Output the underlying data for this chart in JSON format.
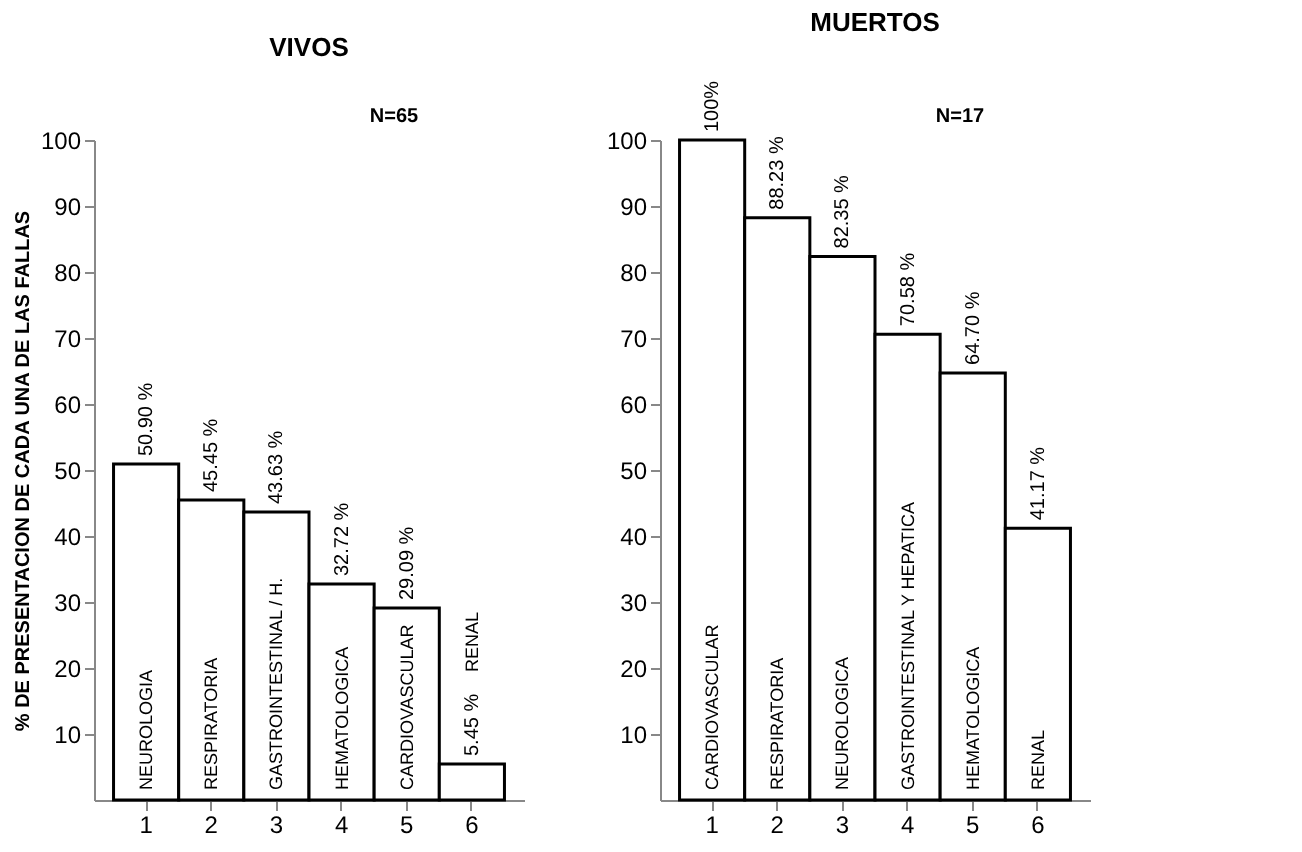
{
  "chart_data": [
    {
      "type": "bar",
      "title": "VIVOS",
      "ylabel": "% DE PRESENTACION DE CADA UNA DE LAS FALLAS",
      "categories": [
        "1",
        "2",
        "3",
        "4",
        "5",
        "6"
      ],
      "values": [
        50.9,
        45.45,
        43.63,
        32.72,
        29.09,
        5.45
      ],
      "color": "#ffffff",
      "value_labels": [
        "50.90 %",
        "45.45 %",
        "43.63 %",
        "32.72 %",
        "29.09 %",
        "5.45 %"
      ],
      "annotations": [
        "N=65",
        "NEUROLOGIA",
        "RESPIRATORIA",
        "GASTROINTESTINAL / H.",
        "HEMATOLOGICA",
        "CARDIOVASCULAR",
        "RENAL"
      ],
      "ylim": [
        0,
        100
      ],
      "yticks": [
        10,
        20,
        30,
        40,
        50,
        60,
        70,
        80,
        90,
        100
      ],
      "grid": false
    },
    {
      "type": "bar",
      "title": "MUERTOS",
      "categories": [
        "1",
        "2",
        "3",
        "4",
        "5",
        "6"
      ],
      "values": [
        100,
        88.23,
        82.35,
        70.58,
        64.7,
        41.17
      ],
      "color": "#ffffff",
      "value_labels": [
        "100%",
        "88.23 %",
        "82.35 %",
        "70.58 %",
        "64.70 %",
        "41.17 %"
      ],
      "annotations": [
        "N=17",
        "CARDIOVASCULAR",
        "RESPIRATORIA",
        "NEUROLOGICA",
        "GASTROINTESTINAL  Y  HEPATICA",
        "HEMATOLOGICA",
        "RENAL"
      ],
      "ylim": [
        0,
        100
      ],
      "yticks": [
        10,
        20,
        30,
        40,
        50,
        60,
        70,
        80,
        90,
        100
      ],
      "grid": false
    }
  ]
}
